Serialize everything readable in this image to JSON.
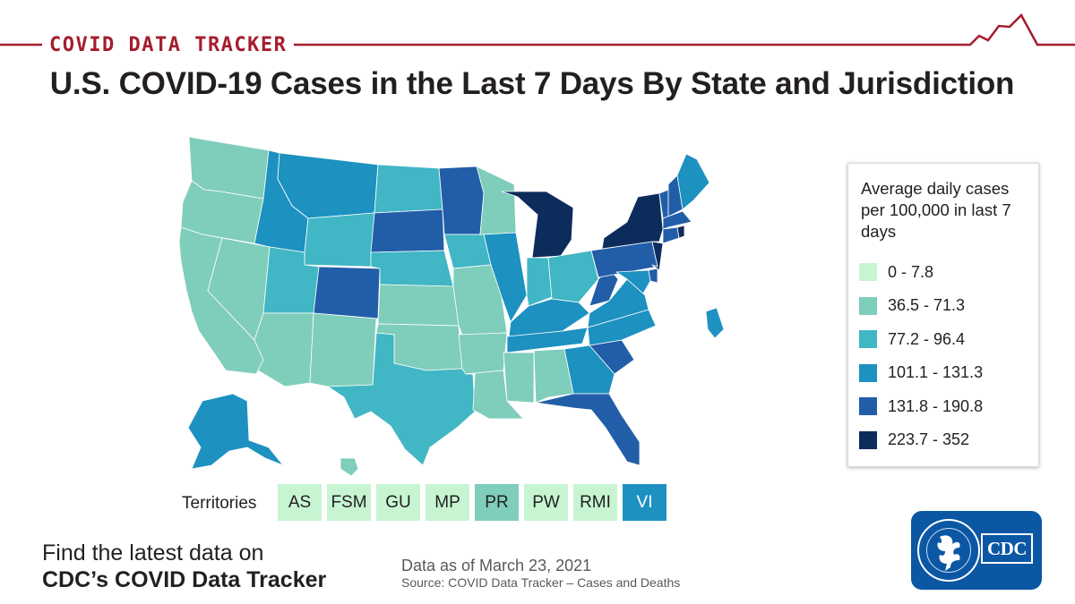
{
  "header": {
    "tracker_label": "COVID DATA TRACKER",
    "title": "U.S. COVID-19 Cases in the Last 7 Days By State and Jurisdiction",
    "accent_color": "#a51d2d"
  },
  "legend": {
    "title": "Average daily cases per 100,000 in last 7 days",
    "bins": [
      {
        "label": "0 - 7.8",
        "color": "#c7f5d2"
      },
      {
        "label": "36.5 - 71.3",
        "color": "#7fcdbb"
      },
      {
        "label": "77.2 - 96.4",
        "color": "#41b6c4"
      },
      {
        "label": "101.1 - 131.3",
        "color": "#1d91c0"
      },
      {
        "label": "131.8 - 190.8",
        "color": "#225ea8"
      },
      {
        "label": "223.7 - 352",
        "color": "#0c2c5b"
      }
    ]
  },
  "map": {
    "states": [
      {
        "name": "WA",
        "bin": 1
      },
      {
        "name": "OR",
        "bin": 1
      },
      {
        "name": "CA",
        "bin": 1
      },
      {
        "name": "NV",
        "bin": 1
      },
      {
        "name": "ID",
        "bin": 3
      },
      {
        "name": "MT",
        "bin": 3
      },
      {
        "name": "WY",
        "bin": 2
      },
      {
        "name": "UT",
        "bin": 2
      },
      {
        "name": "AZ",
        "bin": 1
      },
      {
        "name": "CO",
        "bin": 4
      },
      {
        "name": "NM",
        "bin": 1
      },
      {
        "name": "ND",
        "bin": 2
      },
      {
        "name": "SD",
        "bin": 4
      },
      {
        "name": "NE",
        "bin": 2
      },
      {
        "name": "KS",
        "bin": 1
      },
      {
        "name": "OK",
        "bin": 1
      },
      {
        "name": "TX",
        "bin": 2
      },
      {
        "name": "MN",
        "bin": 4
      },
      {
        "name": "IA",
        "bin": 2
      },
      {
        "name": "MO",
        "bin": 1
      },
      {
        "name": "AR",
        "bin": 1
      },
      {
        "name": "LA",
        "bin": 1
      },
      {
        "name": "WI",
        "bin": 1
      },
      {
        "name": "IL",
        "bin": 3
      },
      {
        "name": "MI",
        "bin": 5
      },
      {
        "name": "IN",
        "bin": 2
      },
      {
        "name": "OH",
        "bin": 2
      },
      {
        "name": "KY",
        "bin": 3
      },
      {
        "name": "TN",
        "bin": 3
      },
      {
        "name": "MS",
        "bin": 1
      },
      {
        "name": "AL",
        "bin": 1
      },
      {
        "name": "GA",
        "bin": 3
      },
      {
        "name": "FL",
        "bin": 4
      },
      {
        "name": "SC",
        "bin": 4
      },
      {
        "name": "NC",
        "bin": 3
      },
      {
        "name": "VA",
        "bin": 3
      },
      {
        "name": "WV",
        "bin": 4
      },
      {
        "name": "PA",
        "bin": 4
      },
      {
        "name": "NY",
        "bin": 5
      },
      {
        "name": "NJ",
        "bin": 5
      },
      {
        "name": "DE",
        "bin": 4
      },
      {
        "name": "MD",
        "bin": 3
      },
      {
        "name": "VT",
        "bin": 4
      },
      {
        "name": "NH",
        "bin": 4
      },
      {
        "name": "ME",
        "bin": 3
      },
      {
        "name": "MA",
        "bin": 4
      },
      {
        "name": "CT",
        "bin": 4
      },
      {
        "name": "RI",
        "bin": 5
      },
      {
        "name": "AK",
        "bin": 3
      },
      {
        "name": "HI",
        "bin": 1
      },
      {
        "name": "PR-island",
        "bin": 3
      }
    ]
  },
  "territories": {
    "label": "Territories",
    "items": [
      {
        "name": "AS",
        "bin": 0
      },
      {
        "name": "FSM",
        "bin": 0
      },
      {
        "name": "GU",
        "bin": 0
      },
      {
        "name": "MP",
        "bin": 0
      },
      {
        "name": "PR",
        "bin": 1
      },
      {
        "name": "PW",
        "bin": 0
      },
      {
        "name": "RMI",
        "bin": 0
      },
      {
        "name": "VI",
        "bin": 3
      }
    ]
  },
  "footer": {
    "find_line1": "Find the latest data on",
    "find_line2": "CDC’s COVID Data Tracker",
    "data_date": "Data as of March 23, 2021",
    "source": "Source: COVID Data Tracker – Cases and Deaths"
  },
  "logo": {
    "wordmark": "CDC",
    "seal_text": "DEPARTMENT OF HEALTH & HUMAN SERVICES • USA",
    "color": "#0b57a4"
  }
}
